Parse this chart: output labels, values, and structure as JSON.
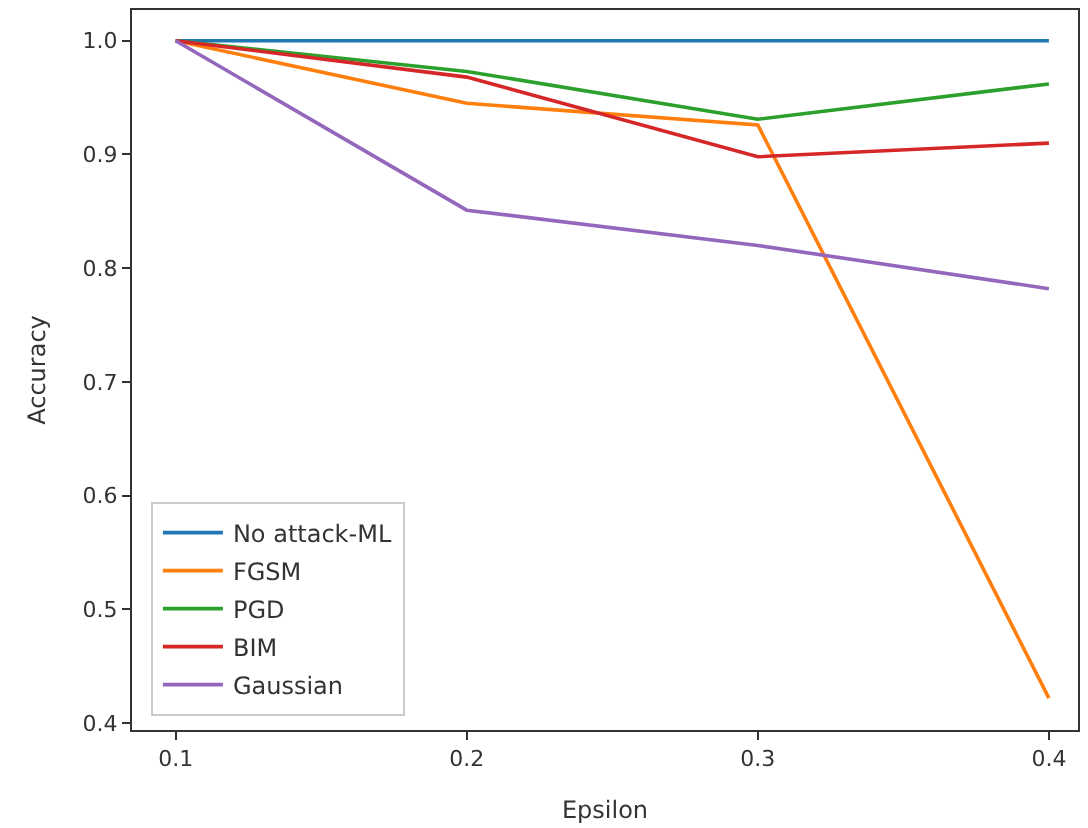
{
  "chart_data": {
    "type": "line",
    "xlabel": "Epsilon",
    "ylabel": "Accuracy",
    "x": [
      0.1,
      0.2,
      0.3,
      0.4
    ],
    "series": [
      {
        "name": "No attack-ML",
        "color": "#1f77b4",
        "values": [
          1.0,
          1.0,
          1.0,
          1.0
        ]
      },
      {
        "name": "FGSM",
        "color": "#ff7f0e",
        "values": [
          1.0,
          0.945,
          0.926,
          0.422
        ]
      },
      {
        "name": "PGD",
        "color": "#2ca02c",
        "values": [
          1.0,
          0.973,
          0.931,
          0.962
        ]
      },
      {
        "name": "BIM",
        "color": "#d62728",
        "values": [
          1.0,
          0.968,
          0.898,
          0.91
        ]
      },
      {
        "name": "Gaussian",
        "color": "#9467bd",
        "values": [
          1.0,
          0.851,
          0.82,
          0.782
        ]
      }
    ],
    "xlim": [
      0.085,
      0.41
    ],
    "xticks": [
      0.1,
      0.2,
      0.3,
      0.4
    ],
    "ylim": [
      0.394,
      1.027
    ],
    "yticks": [
      0.4,
      0.5,
      0.6,
      0.7,
      0.8,
      0.9,
      {
        "value": 1.0,
        "label": "1.0"
      }
    ],
    "legend": "bottom left",
    "marker": "none",
    "line_style": "solid"
  }
}
